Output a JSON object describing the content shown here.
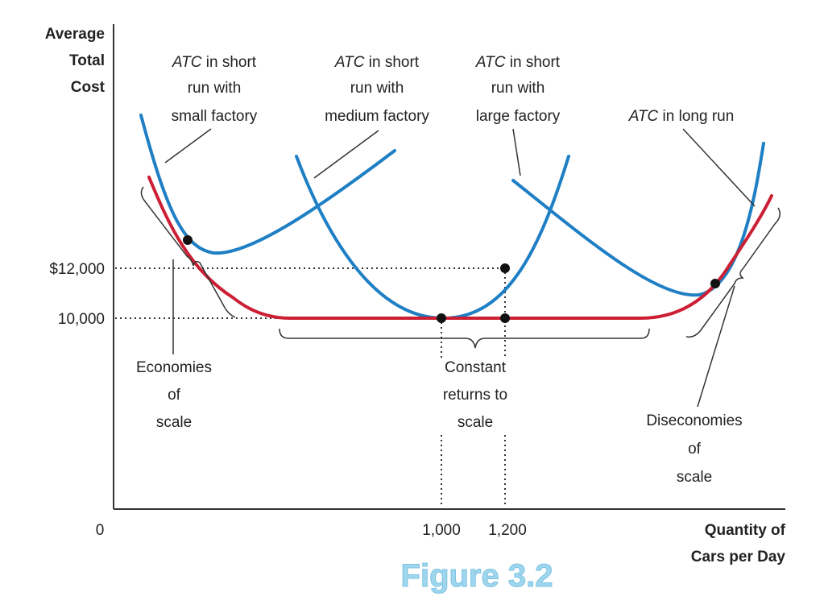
{
  "colors": {
    "short_run": "#1f7fc4",
    "long_run": "#cc1f33",
    "axis": "#333333",
    "caption": "#9fd6ee"
  },
  "axes": {
    "y_title": [
      "Average",
      "Total",
      "Cost"
    ],
    "x_title": [
      "Quantity of",
      "Cars per Day"
    ],
    "origin": "0",
    "y_ticks": [
      "$12,000",
      "10,000"
    ],
    "x_ticks": [
      "1,000",
      "1,200"
    ]
  },
  "curve_labels": {
    "small": {
      "atc": "ATC",
      "line1_rest": " in short",
      "line2": "run with",
      "line3": "small factory"
    },
    "medium": {
      "atc": "ATC",
      "line1_rest": " in short",
      "line2": "run with",
      "line3": "medium factory"
    },
    "large": {
      "atc": "ATC",
      "line1_rest": " in short",
      "line2": "run with",
      "line3": "large factory"
    },
    "long_run": {
      "atc": "ATC",
      "rest": " in long run"
    }
  },
  "regions": {
    "economies": [
      "Economies",
      "of",
      "scale"
    ],
    "constant": [
      "Constant",
      "returns to",
      "scale"
    ],
    "diseconomies": [
      "Diseconomies",
      "of",
      "scale"
    ]
  },
  "caption": "Figure 3.2"
}
